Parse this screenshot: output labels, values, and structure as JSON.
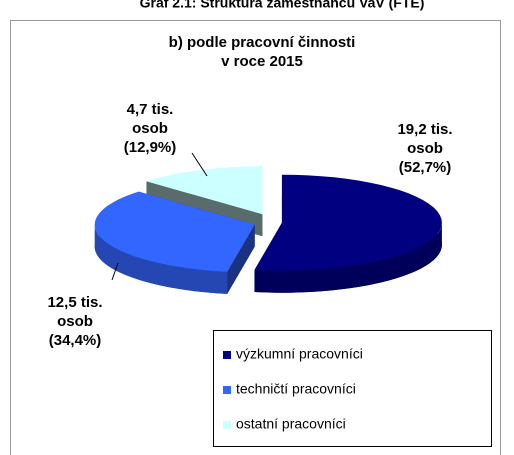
{
  "header": "Graf 2.1: Struktura zaměstnanců VaV (FTE)",
  "chart_data": {
    "type": "pie",
    "title": [
      "b) podle pracovní činnosti",
      "v roce 2015"
    ],
    "categories": [
      "výzkumní pracovníci",
      "techničtí pracovníci",
      "ostatní pracovníci"
    ],
    "values": [
      19.2,
      12.5,
      4.7
    ],
    "value_labels": [
      [
        "19,2 tis.",
        "osob",
        "(52,7%)"
      ],
      [
        "12,5 tis.",
        "osob",
        "(34,4%)"
      ],
      [
        "4,7 tis.",
        "osob",
        "(12,9%)"
      ]
    ],
    "colors": [
      "#000080",
      "#3366ff",
      "#ccffff"
    ],
    "legend": "bottom-right"
  }
}
